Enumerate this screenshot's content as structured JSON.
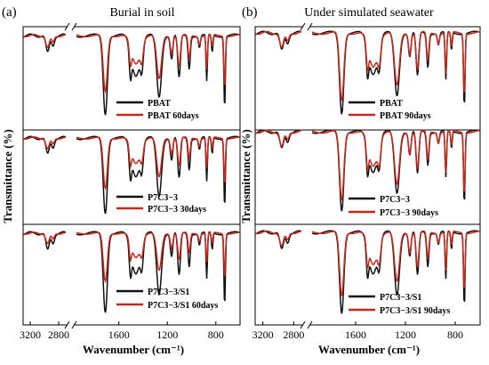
{
  "figure": {
    "panels": [
      {
        "label": "(a)",
        "title": "Burial in soil",
        "ylabel": "Transmittance (%)",
        "xlabel": "Wavenumber (cm⁻¹)",
        "xticks": [
          "3200",
          "2800",
          "1600",
          "1200",
          "800"
        ],
        "subplots": [
          {
            "legend": [
              "PBAT",
              "PBAT 60days"
            ]
          },
          {
            "legend": [
              "P7C3−3",
              "P7C3−3 30days"
            ]
          },
          {
            "legend": [
              "P7C3−3/S1",
              "P7C3−3/S1 60days"
            ]
          }
        ]
      },
      {
        "label": "(b)",
        "title": "Under simulated seawater",
        "ylabel": "Transmittance (%)",
        "xlabel": "Wavenumber (cm⁻¹)",
        "xticks": [
          "3200",
          "2800",
          "1600",
          "1200",
          "800"
        ],
        "subplots": [
          {
            "legend": [
              "PBAT",
              "PBAT 90days"
            ]
          },
          {
            "legend": [
              "P7C3−3",
              "P7C3−3 90days"
            ]
          },
          {
            "legend": [
              "P7C3−3/S1",
              "P7C3−3/S1 90days"
            ]
          }
        ]
      }
    ]
  },
  "chart_data": [
    {
      "type": "line",
      "title": "Burial in soil",
      "xlabel": "Wavenumber (cm⁻¹)",
      "ylabel": "Transmittance (%)",
      "x_segments": [
        [
          3300,
          2700
        ],
        [
          1950,
          600
        ]
      ],
      "x_reversed": true,
      "xticks": [
        3200,
        2800,
        1600,
        1200,
        800
      ],
      "colors": {
        "original": "#111111",
        "degraded": "#c8281c"
      },
      "bands": [
        {
          "x": 2955,
          "w": 25,
          "d": 0.22
        },
        {
          "x": 2880,
          "w": 20,
          "d": 0.12
        },
        {
          "x": 1712,
          "w": 17,
          "d": 1.0
        },
        {
          "x": 1505,
          "w": 9,
          "d": 0.35
        },
        {
          "x": 1460,
          "w": 35,
          "d": 0.5
        },
        {
          "x": 1410,
          "w": 12,
          "d": 0.3
        },
        {
          "x": 1268,
          "w": 20,
          "d": 0.78
        },
        {
          "x": 1165,
          "w": 10,
          "d": 0.3
        },
        {
          "x": 1103,
          "w": 11,
          "d": 0.55
        },
        {
          "x": 1020,
          "w": 9,
          "d": 0.42
        },
        {
          "x": 935,
          "w": 8,
          "d": 0.15
        },
        {
          "x": 875,
          "w": 6,
          "d": 0.6
        },
        {
          "x": 830,
          "w": 6,
          "d": 0.22
        },
        {
          "x": 727,
          "w": 6,
          "d": 0.92
        }
      ],
      "series": [
        {
          "label": "PBAT",
          "scale": 1.0
        },
        {
          "label": "PBAT 60days",
          "scale": 0.72
        },
        {
          "label": "P7C3−3",
          "scale": 1.0
        },
        {
          "label": "P7C3−3 30days",
          "scale": 0.68
        },
        {
          "label": "P7C3−3/S1",
          "scale": 1.0
        },
        {
          "label": "P7C3−3/S1 60days",
          "scale": 0.62
        }
      ]
    },
    {
      "type": "line",
      "title": "Under simulated seawater",
      "xlabel": "Wavenumber (cm⁻¹)",
      "ylabel": "Transmittance (%)",
      "x_segments": [
        [
          3300,
          2700
        ],
        [
          1950,
          600
        ]
      ],
      "x_reversed": true,
      "xticks": [
        3200,
        2800,
        1600,
        1200,
        800
      ],
      "colors": {
        "original": "#111111",
        "degraded": "#c8281c"
      },
      "series": [
        {
          "label": "PBAT",
          "scale": 1.0
        },
        {
          "label": "PBAT 90days",
          "scale": 0.85
        },
        {
          "label": "P7C3−3",
          "scale": 1.0
        },
        {
          "label": "P7C3−3 90days",
          "scale": 0.88
        },
        {
          "label": "P7C3−3/S1",
          "scale": 1.0
        },
        {
          "label": "P7C3−3/S1 90days",
          "scale": 0.8
        }
      ]
    }
  ]
}
